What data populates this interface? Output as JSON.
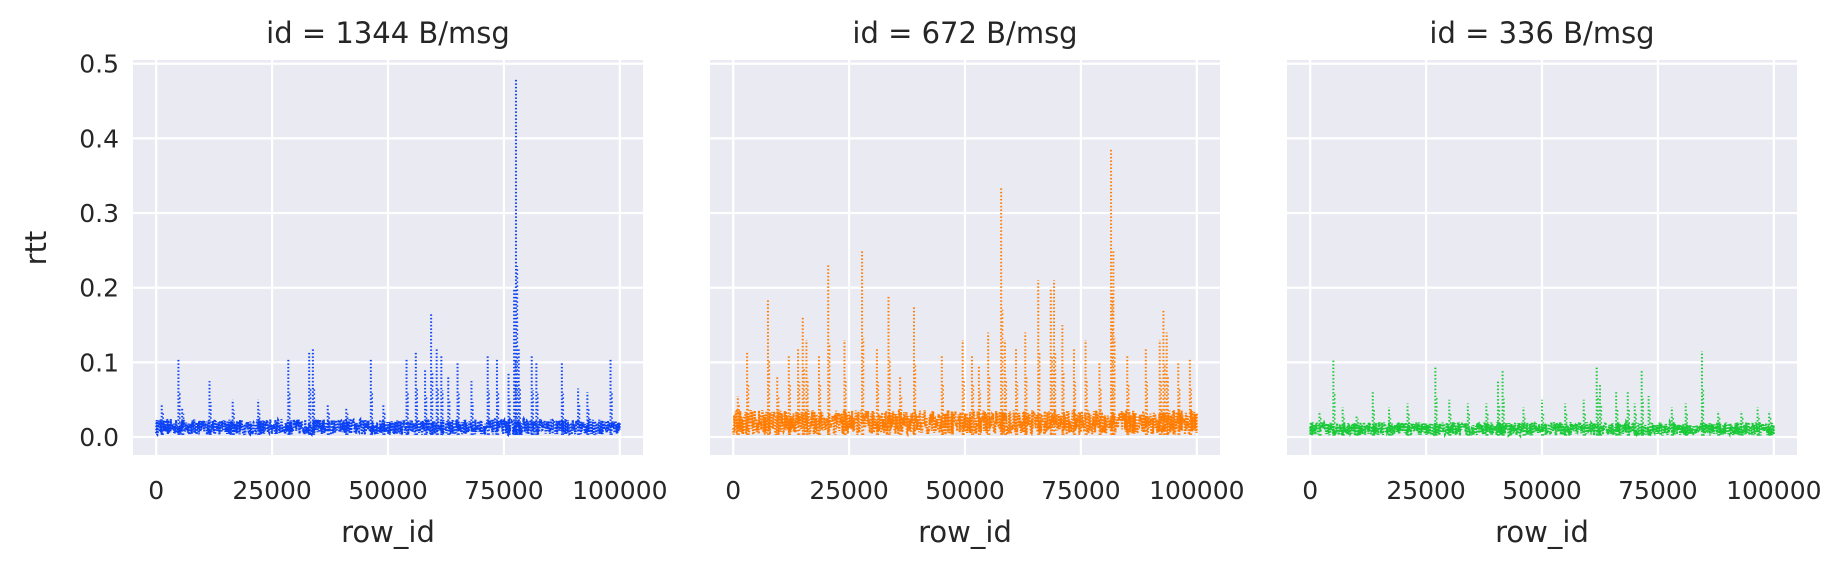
{
  "chart_data": {
    "type": "line",
    "line_style": "dotted",
    "xlabel": "row_id",
    "ylabel": "rtt",
    "xlim": [
      -5000,
      105000
    ],
    "ylim": [
      -0.024,
      0.505
    ],
    "x_ticks": [
      0,
      25000,
      50000,
      75000,
      100000
    ],
    "y_ticks": [
      0.0,
      0.1,
      0.2,
      0.3,
      0.4,
      0.5
    ],
    "x_tick_labels": [
      "0",
      "25000",
      "50000",
      "75000",
      "100000"
    ],
    "y_tick_labels": [
      "0.0",
      "0.1",
      "0.2",
      "0.3",
      "0.4",
      "0.5"
    ],
    "grid": true,
    "shared_y": true,
    "facets": [
      {
        "title": "id = 1344 B/msg",
        "color": "#0b41f5",
        "baseline": {
          "x": [
            0,
            100000
          ],
          "min": 0.003,
          "max": 0.024
        },
        "spikes": [
          {
            "x": 1200,
            "y": 0.045
          },
          {
            "x": 4800,
            "y": 0.105
          },
          {
            "x": 5600,
            "y": 0.04
          },
          {
            "x": 11500,
            "y": 0.075
          },
          {
            "x": 16500,
            "y": 0.05
          },
          {
            "x": 22000,
            "y": 0.05
          },
          {
            "x": 28500,
            "y": 0.105
          },
          {
            "x": 33000,
            "y": 0.115
          },
          {
            "x": 33800,
            "y": 0.12
          },
          {
            "x": 37000,
            "y": 0.045
          },
          {
            "x": 41000,
            "y": 0.04
          },
          {
            "x": 46300,
            "y": 0.105
          },
          {
            "x": 49000,
            "y": 0.045
          },
          {
            "x": 54000,
            "y": 0.105
          },
          {
            "x": 56000,
            "y": 0.115
          },
          {
            "x": 58000,
            "y": 0.09
          },
          {
            "x": 59300,
            "y": 0.165
          },
          {
            "x": 60500,
            "y": 0.12
          },
          {
            "x": 61500,
            "y": 0.11
          },
          {
            "x": 63000,
            "y": 0.08
          },
          {
            "x": 65000,
            "y": 0.1
          },
          {
            "x": 68000,
            "y": 0.075
          },
          {
            "x": 71500,
            "y": 0.11
          },
          {
            "x": 73500,
            "y": 0.105
          },
          {
            "x": 76000,
            "y": 0.085
          },
          {
            "x": 77200,
            "y": 0.2
          },
          {
            "x": 77600,
            "y": 0.48
          },
          {
            "x": 78200,
            "y": 0.12
          },
          {
            "x": 81000,
            "y": 0.11
          },
          {
            "x": 82000,
            "y": 0.1
          },
          {
            "x": 87500,
            "y": 0.1
          },
          {
            "x": 91000,
            "y": 0.065
          },
          {
            "x": 93000,
            "y": 0.06
          },
          {
            "x": 98000,
            "y": 0.105
          }
        ]
      },
      {
        "title": "id = 672 B/msg",
        "color": "#ff7c00",
        "baseline": {
          "x": [
            0,
            100000
          ],
          "min": 0.003,
          "max": 0.036
        },
        "spikes": [
          {
            "x": 1000,
            "y": 0.055
          },
          {
            "x": 3000,
            "y": 0.115
          },
          {
            "x": 7500,
            "y": 0.185
          },
          {
            "x": 9500,
            "y": 0.08
          },
          {
            "x": 12000,
            "y": 0.11
          },
          {
            "x": 14000,
            "y": 0.12
          },
          {
            "x": 15000,
            "y": 0.16
          },
          {
            "x": 15800,
            "y": 0.13
          },
          {
            "x": 18500,
            "y": 0.11
          },
          {
            "x": 20500,
            "y": 0.23
          },
          {
            "x": 24000,
            "y": 0.13
          },
          {
            "x": 27800,
            "y": 0.25
          },
          {
            "x": 31000,
            "y": 0.12
          },
          {
            "x": 33500,
            "y": 0.19
          },
          {
            "x": 36000,
            "y": 0.08
          },
          {
            "x": 39000,
            "y": 0.175
          },
          {
            "x": 45000,
            "y": 0.11
          },
          {
            "x": 49500,
            "y": 0.13
          },
          {
            "x": 51500,
            "y": 0.11
          },
          {
            "x": 53000,
            "y": 0.095
          },
          {
            "x": 55000,
            "y": 0.14
          },
          {
            "x": 57800,
            "y": 0.335
          },
          {
            "x": 58600,
            "y": 0.13
          },
          {
            "x": 61000,
            "y": 0.12
          },
          {
            "x": 63000,
            "y": 0.14
          },
          {
            "x": 65800,
            "y": 0.21
          },
          {
            "x": 68500,
            "y": 0.2
          },
          {
            "x": 69200,
            "y": 0.21
          },
          {
            "x": 71000,
            "y": 0.15
          },
          {
            "x": 73500,
            "y": 0.12
          },
          {
            "x": 76000,
            "y": 0.13
          },
          {
            "x": 79000,
            "y": 0.1
          },
          {
            "x": 81500,
            "y": 0.385
          },
          {
            "x": 82000,
            "y": 0.25
          },
          {
            "x": 85000,
            "y": 0.11
          },
          {
            "x": 89000,
            "y": 0.12
          },
          {
            "x": 92000,
            "y": 0.13
          },
          {
            "x": 92800,
            "y": 0.17
          },
          {
            "x": 93500,
            "y": 0.14
          },
          {
            "x": 96000,
            "y": 0.1
          },
          {
            "x": 98500,
            "y": 0.105
          }
        ]
      },
      {
        "title": "id = 336 B/msg",
        "color": "#1ac938",
        "baseline": {
          "x": [
            0,
            100000
          ],
          "min": 0.002,
          "max": 0.02
        },
        "spikes": [
          {
            "x": 2000,
            "y": 0.035
          },
          {
            "x": 5000,
            "y": 0.105
          },
          {
            "x": 7000,
            "y": 0.04
          },
          {
            "x": 10000,
            "y": 0.03
          },
          {
            "x": 13500,
            "y": 0.06
          },
          {
            "x": 17000,
            "y": 0.04
          },
          {
            "x": 21000,
            "y": 0.045
          },
          {
            "x": 27000,
            "y": 0.095
          },
          {
            "x": 30000,
            "y": 0.05
          },
          {
            "x": 34000,
            "y": 0.045
          },
          {
            "x": 38000,
            "y": 0.045
          },
          {
            "x": 40500,
            "y": 0.075
          },
          {
            "x": 41500,
            "y": 0.09
          },
          {
            "x": 46000,
            "y": 0.04
          },
          {
            "x": 50000,
            "y": 0.05
          },
          {
            "x": 55000,
            "y": 0.045
          },
          {
            "x": 59000,
            "y": 0.05
          },
          {
            "x": 61800,
            "y": 0.095
          },
          {
            "x": 62500,
            "y": 0.07
          },
          {
            "x": 66000,
            "y": 0.06
          },
          {
            "x": 68500,
            "y": 0.06
          },
          {
            "x": 70000,
            "y": 0.045
          },
          {
            "x": 71500,
            "y": 0.09
          },
          {
            "x": 73000,
            "y": 0.055
          },
          {
            "x": 78000,
            "y": 0.04
          },
          {
            "x": 81000,
            "y": 0.045
          },
          {
            "x": 84500,
            "y": 0.115
          },
          {
            "x": 88000,
            "y": 0.035
          },
          {
            "x": 93000,
            "y": 0.035
          },
          {
            "x": 96500,
            "y": 0.04
          },
          {
            "x": 99000,
            "y": 0.035
          }
        ]
      }
    ]
  }
}
